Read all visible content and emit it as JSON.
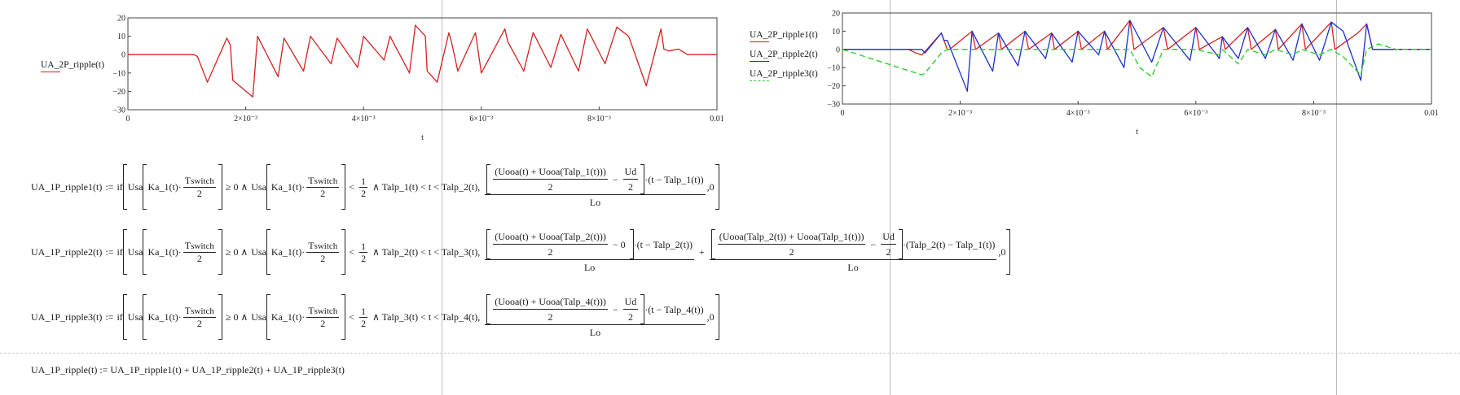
{
  "chart_data": [
    {
      "type": "line",
      "ylabel": "UA_2P_ripple(t)",
      "xlabel": "t",
      "xlim": [
        0,
        0.01
      ],
      "ylim": [
        -30,
        20
      ],
      "yticks": [
        "20",
        "10",
        "0",
        "−10",
        "−20",
        "−30"
      ],
      "xticks": [
        "0",
        "2×10⁻³",
        "4×10⁻³",
        "6×10⁻³",
        "8×10⁻³",
        "0.01"
      ],
      "grid": false,
      "series": [
        {
          "name": "UA_2P_ripple(t)",
          "color": "#d42020",
          "x": [
            0,
            0.00112,
            0.00118,
            0.00135,
            0.00168,
            0.00174,
            0.00178,
            0.00212,
            0.0022,
            0.00255,
            0.00265,
            0.00298,
            0.0031,
            0.00345,
            0.00355,
            0.0039,
            0.004,
            0.00435,
            0.00445,
            0.00478,
            0.00488,
            0.00505,
            0.00508,
            0.00525,
            0.00545,
            0.0055,
            0.0056,
            0.0059,
            0.006,
            0.0064,
            0.00645,
            0.00672,
            0.00688,
            0.00718,
            0.00735,
            0.00765,
            0.0078,
            0.0081,
            0.0083,
            0.0085,
            0.0088,
            0.00905,
            0.0091,
            0.00918,
            0.00935,
            0.0095,
            0.01
          ],
          "y": [
            0,
            0,
            -1,
            -15,
            9,
            5,
            -14,
            -23,
            10,
            -12,
            9,
            -9,
            10,
            -5,
            9,
            -7,
            10,
            -3,
            10,
            -10,
            16,
            10,
            -9,
            -15,
            12,
            6,
            -9,
            12,
            -10,
            14,
            7,
            -9,
            12,
            -7,
            11,
            -9,
            14,
            -5,
            15,
            10,
            -17,
            14,
            3,
            2,
            3,
            0,
            0
          ]
        }
      ]
    },
    {
      "type": "line",
      "ylabel": "UA_2P_ripple1(t) UA_2P_ripple2(t) UA_2P_ripple3(t)",
      "xlabel": "t",
      "xlim": [
        0,
        0.01
      ],
      "ylim": [
        -30,
        20
      ],
      "yticks": [
        "20",
        "10",
        "0",
        "−10",
        "−20",
        "−30"
      ],
      "xticks": [
        "0",
        "2×10⁻³",
        "4×10⁻³",
        "6×10⁻³",
        "8×10⁻³",
        "0.01"
      ],
      "grid": false,
      "series": [
        {
          "name": "UA_2P_ripple1(t)",
          "color": "#d42020",
          "x": [
            0,
            0.00112,
            0.00125,
            0.00135,
            0.00168,
            0.00178,
            0.00182,
            0.0022,
            0.00226,
            0.00265,
            0.0027,
            0.0031,
            0.00316,
            0.00355,
            0.0036,
            0.004,
            0.00406,
            0.00445,
            0.0045,
            0.00488,
            0.00495,
            0.00545,
            0.00552,
            0.006,
            0.00606,
            0.00645,
            0.0065,
            0.00688,
            0.00694,
            0.00735,
            0.0074,
            0.0078,
            0.00786,
            0.0083,
            0.00836,
            0.00875,
            0.0089,
            0.009,
            0.01
          ],
          "y": [
            0,
            0,
            -2,
            -3,
            9,
            0,
            0,
            10,
            0,
            9,
            0,
            10,
            0,
            9,
            0,
            10,
            0,
            10,
            0,
            16,
            0,
            12,
            0,
            12,
            0,
            7,
            0,
            12,
            0,
            11,
            0,
            14,
            0,
            15,
            0,
            9,
            14,
            0,
            0
          ]
        },
        {
          "name": "UA_2P_ripple2(t)",
          "color": "#1c2fd0",
          "x": [
            0,
            0.00135,
            0.0014,
            0.00168,
            0.00172,
            0.00178,
            0.00212,
            0.0022,
            0.00255,
            0.00265,
            0.00298,
            0.0031,
            0.00345,
            0.00355,
            0.0039,
            0.004,
            0.00435,
            0.00445,
            0.00478,
            0.00488,
            0.00525,
            0.00545,
            0.0059,
            0.006,
            0.0064,
            0.00645,
            0.00672,
            0.00688,
            0.00718,
            0.00735,
            0.00765,
            0.0078,
            0.0081,
            0.0083,
            0.0085,
            0.0088,
            0.0089,
            0.009,
            0.01
          ],
          "y": [
            0,
            0,
            -2,
            9,
            5,
            5,
            -23,
            10,
            -12,
            9,
            -9,
            10,
            -5,
            9,
            -7,
            10,
            -3,
            10,
            -10,
            16,
            -7,
            12,
            -6,
            12,
            -5,
            7,
            -5,
            12,
            -5,
            11,
            -6,
            14,
            -6,
            15,
            10,
            -17,
            14,
            0,
            0
          ]
        },
        {
          "name": "UA_2P_ripple3(t)",
          "color": "#22cc22",
          "x": [
            0,
            0.00135,
            0.0014,
            0.00168,
            0.00178,
            0.00212,
            0.0022,
            0.00255,
            0.00265,
            0.00298,
            0.0031,
            0.00345,
            0.00355,
            0.0039,
            0.004,
            0.00435,
            0.00445,
            0.00478,
            0.00488,
            0.00505,
            0.00525,
            0.00545,
            0.0059,
            0.006,
            0.0064,
            0.00645,
            0.00672,
            0.00688,
            0.00718,
            0.00735,
            0.00765,
            0.0078,
            0.0081,
            0.0083,
            0.0085,
            0.0088,
            0.0089,
            0.0091,
            0.0094,
            0.01
          ],
          "y": [
            0,
            -14,
            -13,
            -2,
            0,
            0,
            0,
            0,
            0,
            0,
            0,
            0,
            0,
            0,
            0,
            0,
            0,
            0,
            0,
            -10,
            -15,
            0,
            0,
            0,
            -3,
            0,
            -8,
            0,
            -3,
            0,
            -3,
            0,
            -3,
            0,
            -4,
            -14,
            0,
            3,
            0,
            0
          ]
        }
      ]
    }
  ],
  "formulas": {
    "f1": {
      "lhs": "UA_1P_ripple1(t)",
      "assign": ":=",
      "kw": "if",
      "usa": "Usa",
      "ka": "Ka_1(t)·",
      "tsw": "T",
      "tsw_sub": "switch",
      "two": "2",
      "ge": "≥ 0 ∧",
      "lt": "<",
      "half_num": "1",
      "half_den": "2",
      "and_talp": "∧ Talp_1(t) < t < Talp_2(t),",
      "inner_num": "(Uooa(t) + Uooa(Talp_1(t)))",
      "minus": "−",
      "ud": "Ud",
      "tail": "·(t − Talp_1(t))",
      "lo": "Lo",
      "else": ",0"
    },
    "f2": {
      "lhs": "UA_1P_ripple2(t)",
      "and_talp": "∧ Talp_2(t) < t < Talp_3(t),",
      "inner_num": "(Uooa(t) + Uooa(Talp_2(t)))",
      "minus_zero": "− 0",
      "tail": "·(t − Talp_2(t))",
      "plus": "+",
      "inner_num2": "(Uooa(Talp_2(t)) + Uooa(Talp_1(t)))",
      "tail2": "·(Talp_2(t) − Talp_1(t))"
    },
    "f3": {
      "lhs": "UA_1P_ripple3(t)",
      "and_talp": "∧ Talp_3(t) < t < Talp_4(t),",
      "inner_num": "(Uooa(t) + Uooa(Talp_4(t)))",
      "tail": "·(t − Talp_4(t))"
    },
    "f4": "UA_1P_ripple(t) := UA_1P_ripple1(t) + UA_1P_ripple2(t) + UA_1P_ripple3(t)"
  }
}
